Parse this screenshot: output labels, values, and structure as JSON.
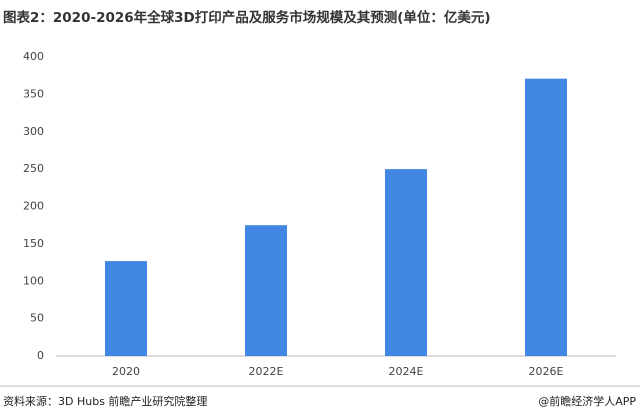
{
  "chart_data": {
    "type": "bar",
    "title": "图表2：2020-2026年全球3D打印产品及服务市场规模及其预测(单位：亿美元)",
    "categories": [
      "2020",
      "2022E",
      "2024E",
      "2026E"
    ],
    "values": [
      127,
      175,
      250,
      371
    ],
    "color": "#4186e3",
    "ylim": [
      0,
      400
    ],
    "yticks": [
      0,
      50,
      100,
      150,
      200,
      250,
      300,
      350,
      400
    ],
    "grid": false,
    "source": "资料来源：3D Hubs 前瞻产业研究院整理",
    "credit": "@前瞻经济学人APP"
  }
}
